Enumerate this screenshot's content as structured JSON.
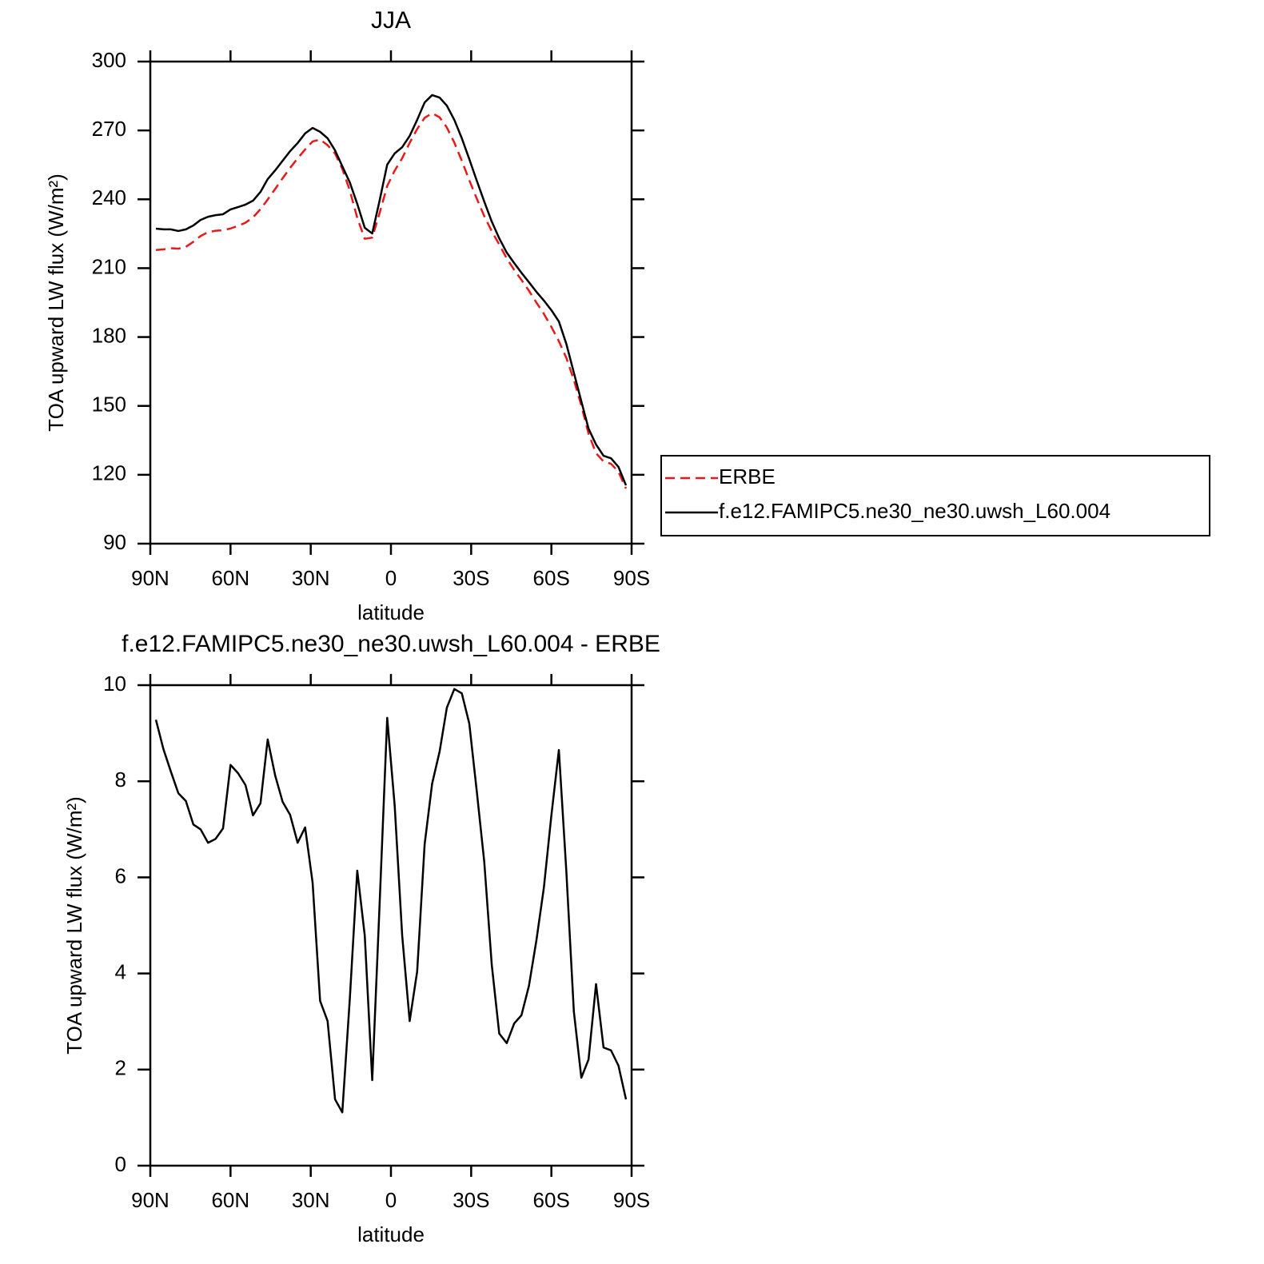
{
  "chart_data": [
    {
      "type": "line",
      "title": "JJA",
      "xlabel": "latitude",
      "ylabel": "TOA upward LW flux (W/m²)",
      "x": [
        87.9,
        85.1,
        82.3,
        79.5,
        76.7,
        73.9,
        71.2,
        68.4,
        65.6,
        62.8,
        60.0,
        57.2,
        54.4,
        51.6,
        48.8,
        46.1,
        43.3,
        40.5,
        37.7,
        34.9,
        32.1,
        29.3,
        26.5,
        23.7,
        20.9,
        18.2,
        15.4,
        12.6,
        9.8,
        7.0,
        4.2,
        1.4,
        -1.4,
        -4.2,
        -7.0,
        -9.8,
        -12.6,
        -15.4,
        -18.2,
        -20.9,
        -23.7,
        -26.5,
        -29.3,
        -32.1,
        -34.9,
        -37.7,
        -40.5,
        -43.3,
        -46.1,
        -48.8,
        -51.6,
        -54.4,
        -57.2,
        -60.0,
        -62.8,
        -65.6,
        -68.4,
        -71.2,
        -73.9,
        -76.7,
        -79.5,
        -82.3,
        -85.1,
        -87.9
      ],
      "series": [
        {
          "name": "ERBE",
          "color": "#e8191b",
          "line_style": "dashed",
          "values": [
            217.9,
            218.2,
            218.7,
            218.5,
            219.3,
            221.5,
            224.0,
            225.7,
            226.3,
            226.5,
            227.3,
            228.4,
            229.8,
            232.1,
            235.7,
            239.9,
            244.5,
            249.2,
            253.7,
            257.8,
            261.7,
            265.2,
            266.0,
            263.6,
            259.9,
            253.3,
            243.9,
            231.9,
            222.8,
            223.3,
            234.2,
            245.8,
            252.5,
            257.9,
            264.6,
            270.6,
            275.5,
            277.5,
            275.7,
            271.3,
            264.7,
            256.8,
            248.3,
            240.3,
            232.7,
            226.1,
            220.3,
            214.3,
            209.2,
            204.9,
            200.2,
            195.0,
            190.1,
            184.4,
            178.2,
            170.9,
            161.3,
            150.2,
            137.9,
            129.4,
            125.8,
            124.8,
            121.3,
            114.0
          ]
        },
        {
          "name": "f.e12.FAMIPC5.ne30_ne30.uwsh_L60.004",
          "color": "#000000",
          "line_style": "solid",
          "values": [
            227.2,
            226.9,
            226.9,
            226.2,
            226.9,
            228.6,
            231.0,
            232.4,
            233.1,
            233.5,
            235.6,
            236.6,
            237.7,
            239.4,
            243.2,
            248.8,
            252.6,
            256.8,
            261.0,
            264.5,
            268.7,
            271.1,
            269.4,
            266.6,
            261.3,
            254.4,
            247.4,
            238.0,
            227.6,
            225.1,
            239.7,
            255.1,
            260.0,
            262.7,
            267.6,
            274.6,
            282.2,
            285.4,
            284.3,
            280.8,
            274.6,
            266.6,
            257.5,
            248.1,
            239.0,
            230.3,
            223.0,
            216.8,
            212.2,
            208.0,
            203.9,
            199.7,
            195.9,
            191.7,
            186.8,
            177.0,
            164.5,
            152.0,
            140.1,
            133.2,
            128.3,
            127.2,
            123.4,
            115.4
          ]
        }
      ],
      "xlim": [
        90,
        -90
      ],
      "xticks": [
        {
          "value": 90,
          "label": "90N"
        },
        {
          "value": 60,
          "label": "60N"
        },
        {
          "value": 30,
          "label": "30N"
        },
        0,
        {
          "value": -30,
          "label": "30S"
        },
        {
          "value": -60,
          "label": "60S"
        },
        {
          "value": -90,
          "label": "90S"
        }
      ],
      "ylim": [
        90,
        300
      ],
      "yticks": [
        90,
        120,
        150,
        180,
        210,
        240,
        270,
        300
      ],
      "legend": "right"
    },
    {
      "type": "line",
      "title": "f.e12.FAMIPC5.ne30_ne30.uwsh_L60.004 - ERBE",
      "xlabel": "latitude",
      "ylabel": "TOA upward LW flux (W/m²)",
      "x": [
        87.9,
        85.1,
        82.3,
        79.5,
        76.7,
        73.9,
        71.2,
        68.4,
        65.6,
        62.8,
        60.0,
        57.2,
        54.4,
        51.6,
        48.8,
        46.1,
        43.3,
        40.5,
        37.7,
        34.9,
        32.1,
        29.3,
        26.5,
        23.7,
        20.9,
        18.2,
        15.4,
        12.6,
        9.8,
        7.0,
        4.2,
        1.4,
        -1.4,
        -4.2,
        -7.0,
        -9.8,
        -12.6,
        -15.4,
        -18.2,
        -20.9,
        -23.7,
        -26.5,
        -29.3,
        -32.1,
        -34.9,
        -37.7,
        -40.5,
        -43.3,
        -46.1,
        -48.8,
        -51.6,
        -54.4,
        -57.2,
        -60.0,
        -62.8,
        -65.6,
        -68.4,
        -71.2,
        -73.9,
        -76.7,
        -79.5,
        -82.3,
        -85.1,
        -87.9
      ],
      "values": [
        9.28,
        8.67,
        8.2,
        7.75,
        7.59,
        7.1,
        7.0,
        6.72,
        6.8,
        7.02,
        8.34,
        8.17,
        7.92,
        7.29,
        7.54,
        8.87,
        8.12,
        7.57,
        7.3,
        6.72,
        7.04,
        5.89,
        3.43,
        3.01,
        1.38,
        1.11,
        3.46,
        6.14,
        4.79,
        1.78,
        5.5,
        9.32,
        7.49,
        4.79,
        3.01,
        4.04,
        6.69,
        7.95,
        8.62,
        9.53,
        9.92,
        9.83,
        9.2,
        7.79,
        6.32,
        4.18,
        2.75,
        2.55,
        2.96,
        3.13,
        3.74,
        4.69,
        5.79,
        7.29,
        8.65,
        6.12,
        3.21,
        1.83,
        2.21,
        3.78,
        2.46,
        2.4,
        2.08,
        1.38
      ],
      "color": "#000000",
      "xlim": [
        90,
        -90
      ],
      "xticks": [
        {
          "value": 90,
          "label": "90N"
        },
        {
          "value": 60,
          "label": "60N"
        },
        {
          "value": 30,
          "label": "30N"
        },
        0,
        {
          "value": -30,
          "label": "30S"
        },
        {
          "value": -60,
          "label": "60S"
        },
        {
          "value": -90,
          "label": "90S"
        }
      ],
      "ylim": [
        0,
        10
      ],
      "yticks": [
        0,
        2,
        4,
        6,
        8,
        10
      ]
    }
  ]
}
